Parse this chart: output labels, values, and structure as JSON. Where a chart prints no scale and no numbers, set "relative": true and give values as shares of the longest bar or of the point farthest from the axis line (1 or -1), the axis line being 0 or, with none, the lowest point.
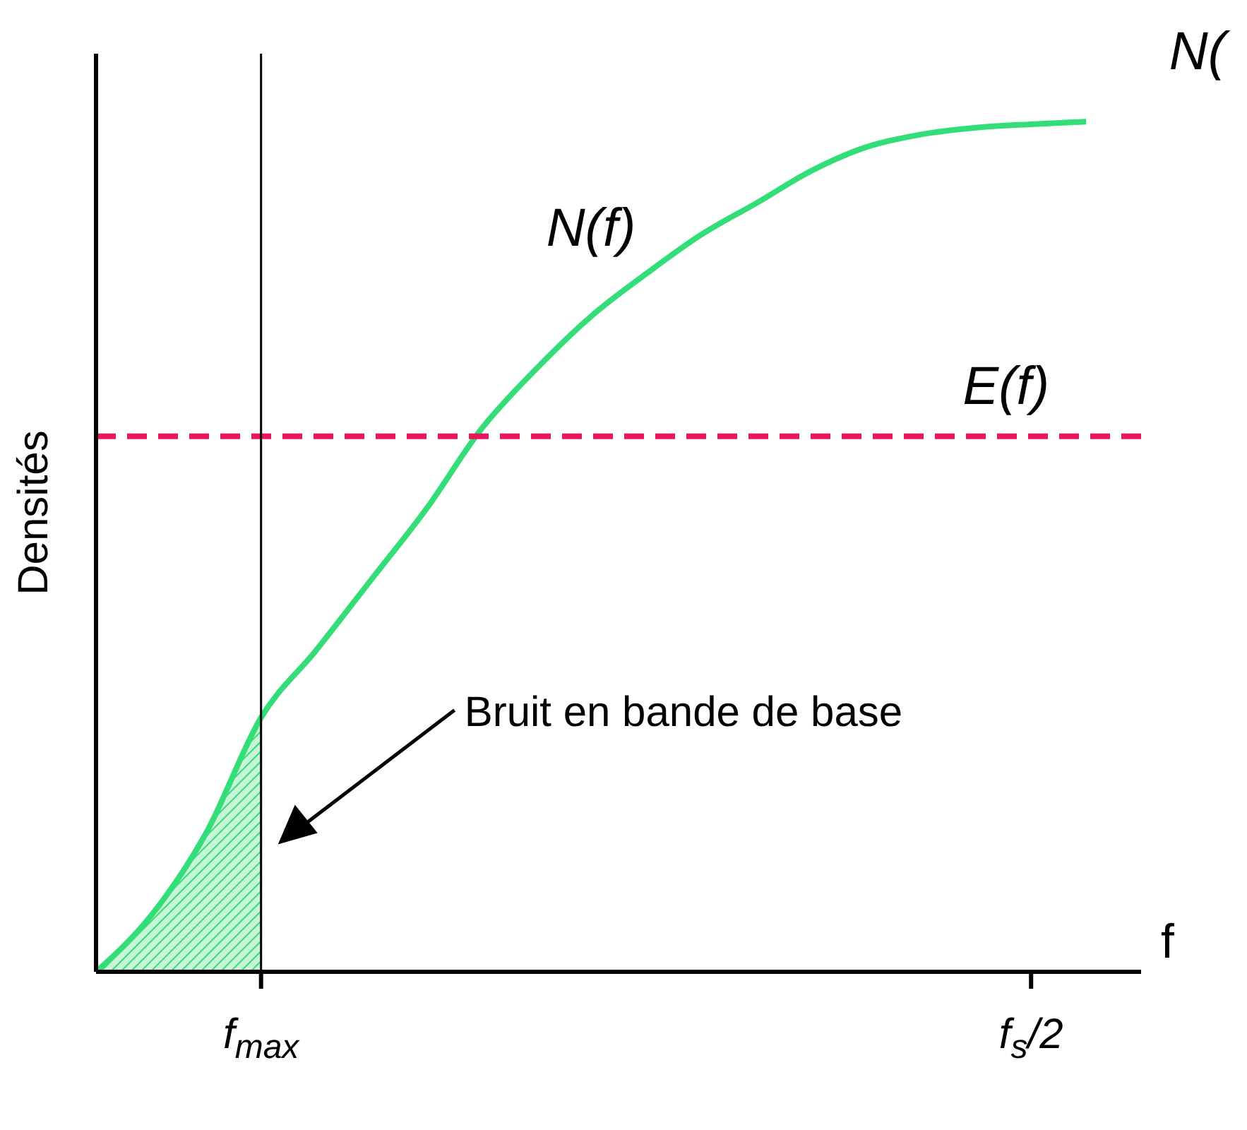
{
  "chart_data": {
    "type": "line",
    "relative": true,
    "xlabel": "f",
    "ylabel": "Densités",
    "categories": [
      null,
      null,
      null,
      "f$_{max}$",
      null,
      null,
      null,
      null,
      null,
      null,
      null,
      null,
      null,
      null,
      null,
      null,
      null,
      "f$_{s}$/2",
      null,
      null
    ],
    "series": [
      {
        "name": "N(f)",
        "color": "#33dd77",
        "values": [
          0,
          0.066,
          0.163,
          0.299,
          0.378,
          0.461,
          0.544,
          0.638,
          0.709,
          0.771,
          0.821,
          0.867,
          0.904,
          0.942,
          0.97,
          0.985,
          0.993,
          0.997,
          1,
          null
        ]
      },
      {
        "type": "area",
        "color": "#33dd77",
        "values": [
          0,
          0.066,
          0.163,
          0.299,
          null,
          null,
          null,
          null,
          null,
          null,
          null,
          null,
          null,
          null,
          null,
          null,
          null,
          null,
          null,
          null
        ]
      }
    ],
    "ref_lines": [
      {
        "axis": "y",
        "value": 0.63,
        "label": "E(f)",
        "color": "#e8175d",
        "line_style": "dashed"
      },
      {
        "axis": "x",
        "value": "f$_{max}$",
        "color": "#000000",
        "line_style": "solid"
      }
    ],
    "annotations": [
      "Bruit en bande de base",
      "N("
    ],
    "marker": "none"
  }
}
